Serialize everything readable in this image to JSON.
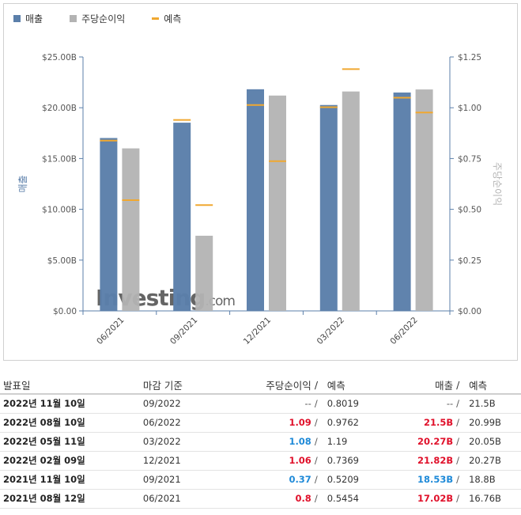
{
  "legend": [
    {
      "label": "매출",
      "color": "#5b7faa",
      "kind": "box"
    },
    {
      "label": "주당순이익",
      "color": "#b3b3b3",
      "kind": "box"
    },
    {
      "label": "예측",
      "color": "#f0a830",
      "kind": "line"
    }
  ],
  "watermark": {
    "text": "Investing",
    "suffix": ".com"
  },
  "chart_data": {
    "type": "bar",
    "categories": [
      "06/2021",
      "09/2021",
      "12/2021",
      "03/2022",
      "06/2022"
    ],
    "left_axis": {
      "label": "매출",
      "ticks": [
        "$0.00",
        "$5.00B",
        "$10.00B",
        "$15.00B",
        "$20.00B",
        "$25.00B"
      ],
      "ylim": [
        0,
        25
      ]
    },
    "right_axis": {
      "label": "주당순이익",
      "ticks": [
        "$0.00",
        "$0.25",
        "$0.50",
        "$0.75",
        "$1.00",
        "$1.25"
      ],
      "ylim": [
        0,
        1.25
      ]
    },
    "series": [
      {
        "name": "매출",
        "axis": "left",
        "values": [
          17.02,
          18.53,
          21.82,
          20.27,
          21.5
        ],
        "forecast": [
          16.76,
          18.8,
          20.27,
          20.05,
          20.99
        ]
      },
      {
        "name": "주당순이익",
        "axis": "right",
        "values": [
          0.8,
          0.37,
          1.06,
          1.08,
          1.09
        ],
        "forecast": [
          0.5454,
          0.5209,
          0.7369,
          1.19,
          0.9762
        ]
      }
    ],
    "grid": false
  },
  "table": {
    "headers": {
      "date": "발표일",
      "period": "마감 기준",
      "eps": "주당순이익",
      "slash": "/",
      "eps_fc": "예측",
      "rev": "매출",
      "rev_fc": "예측"
    },
    "rows": [
      {
        "date": "2022년 11월 10일",
        "period": "09/2022",
        "eps": "--",
        "eps_fc": "0.8019",
        "rev": "--",
        "rev_fc": "21.5B",
        "eps_color": "none",
        "rev_color": "none"
      },
      {
        "date": "2022년 08월 10일",
        "period": "06/2022",
        "eps": "1.09",
        "eps_fc": "0.9762",
        "rev": "21.5B",
        "rev_fc": "20.99B",
        "eps_color": "red",
        "rev_color": "red"
      },
      {
        "date": "2022년 05월 11일",
        "period": "03/2022",
        "eps": "1.08",
        "eps_fc": "1.19",
        "rev": "20.27B",
        "rev_fc": "20.05B",
        "eps_color": "blue",
        "rev_color": "red"
      },
      {
        "date": "2022년 02월 09일",
        "period": "12/2021",
        "eps": "1.06",
        "eps_fc": "0.7369",
        "rev": "21.82B",
        "rev_fc": "20.27B",
        "eps_color": "red",
        "rev_color": "red"
      },
      {
        "date": "2021년 11월 10일",
        "period": "09/2021",
        "eps": "0.37",
        "eps_fc": "0.5209",
        "rev": "18.53B",
        "rev_fc": "18.8B",
        "eps_color": "blue",
        "rev_color": "blue"
      },
      {
        "date": "2021년 08월 12일",
        "period": "06/2021",
        "eps": "0.8",
        "eps_fc": "0.5454",
        "rev": "17.02B",
        "rev_fc": "16.76B",
        "eps_color": "red",
        "rev_color": "red"
      }
    ]
  }
}
